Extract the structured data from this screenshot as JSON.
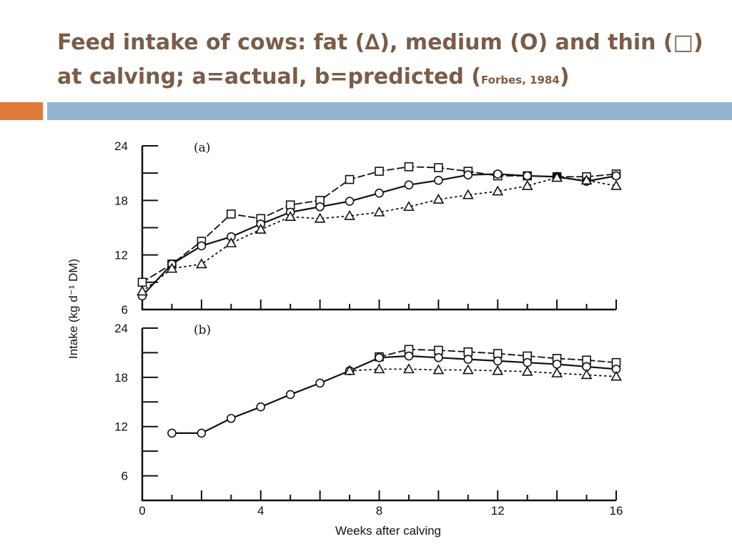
{
  "slide": {
    "title_line1": "Feed intake of cows: fat (∆), medium (O) and thin (□)",
    "title_line2_main": "at calving; a=actual, b=predicted  (",
    "title_line2_cite": "Forbes, 1984",
    "title_line2_close": ")",
    "accent_colors": {
      "title": "#7a5c48",
      "orange_bar": "#e07b39",
      "blue_bar": "#93b3d3"
    }
  },
  "chart_data": [
    {
      "type": "line",
      "panel_label": "(a)",
      "xlim": [
        0,
        16
      ],
      "ylim": [
        6,
        24
      ],
      "yticks": [
        6,
        12,
        18,
        24
      ],
      "xlabel": "",
      "ylabel": "Intake (kg d⁻¹ DM)",
      "series": [
        {
          "marker": "square",
          "line": "dashed",
          "x": [
            0,
            1,
            2,
            3,
            4,
            5,
            6,
            7,
            8,
            9,
            10,
            11,
            12,
            13,
            14,
            15,
            16
          ],
          "values": [
            9,
            11,
            13.5,
            16.5,
            16,
            17.5,
            18,
            20.3,
            21.2,
            21.7,
            21.6,
            21.2,
            20.7,
            20.7,
            20.6,
            20.6,
            20.9
          ]
        },
        {
          "marker": "circle",
          "line": "solid",
          "x": [
            0,
            1,
            2,
            3,
            4,
            5,
            6,
            7,
            8,
            9,
            10,
            11,
            12,
            13,
            14,
            15,
            16
          ],
          "values": [
            7.5,
            11,
            13,
            14,
            15.4,
            16.7,
            17.3,
            17.9,
            18.8,
            19.7,
            20.2,
            20.8,
            20.9,
            20.7,
            20.6,
            20.1,
            20.7
          ]
        },
        {
          "marker": "triangle",
          "line": "dotted",
          "x": [
            0,
            1,
            2,
            3,
            4,
            5,
            6,
            7,
            8,
            9,
            10,
            11,
            12,
            13,
            14,
            15,
            16
          ],
          "values": [
            8,
            10.5,
            11,
            13.3,
            14.8,
            16.2,
            16,
            16.3,
            16.7,
            17.3,
            18.1,
            18.6,
            19,
            19.6,
            20.5,
            20.2,
            19.6
          ]
        }
      ]
    },
    {
      "type": "line",
      "panel_label": "(b)",
      "xlim": [
        0,
        16
      ],
      "ylim": [
        3,
        24
      ],
      "yticks": [
        6,
        12,
        18,
        24
      ],
      "xticks": [
        0,
        4,
        8,
        12,
        16
      ],
      "xlabel": "Weeks after calving",
      "ylabel": "",
      "series": [
        {
          "marker": "square",
          "line": "dashed",
          "x": [
            8,
            9,
            10,
            11,
            12,
            13,
            14,
            15,
            16
          ],
          "values": [
            20.5,
            21.4,
            21.3,
            21.1,
            20.9,
            20.6,
            20.3,
            20.1,
            19.8
          ]
        },
        {
          "marker": "circle",
          "line": "solid",
          "x": [
            1,
            2,
            3,
            4,
            5,
            6,
            7,
            8,
            9,
            10,
            11,
            12,
            13,
            14,
            15,
            16
          ],
          "values": [
            11.2,
            11.2,
            13,
            14.4,
            15.9,
            17.3,
            18.8,
            20.4,
            20.6,
            20.4,
            20.2,
            20,
            19.8,
            19.6,
            19.3,
            19
          ]
        },
        {
          "marker": "triangle",
          "line": "dotted",
          "x": [
            7,
            8,
            9,
            10,
            11,
            12,
            13,
            14,
            15,
            16
          ],
          "values": [
            18.8,
            19,
            19,
            18.9,
            18.9,
            18.8,
            18.7,
            18.5,
            18.3,
            18.1
          ]
        }
      ]
    }
  ]
}
